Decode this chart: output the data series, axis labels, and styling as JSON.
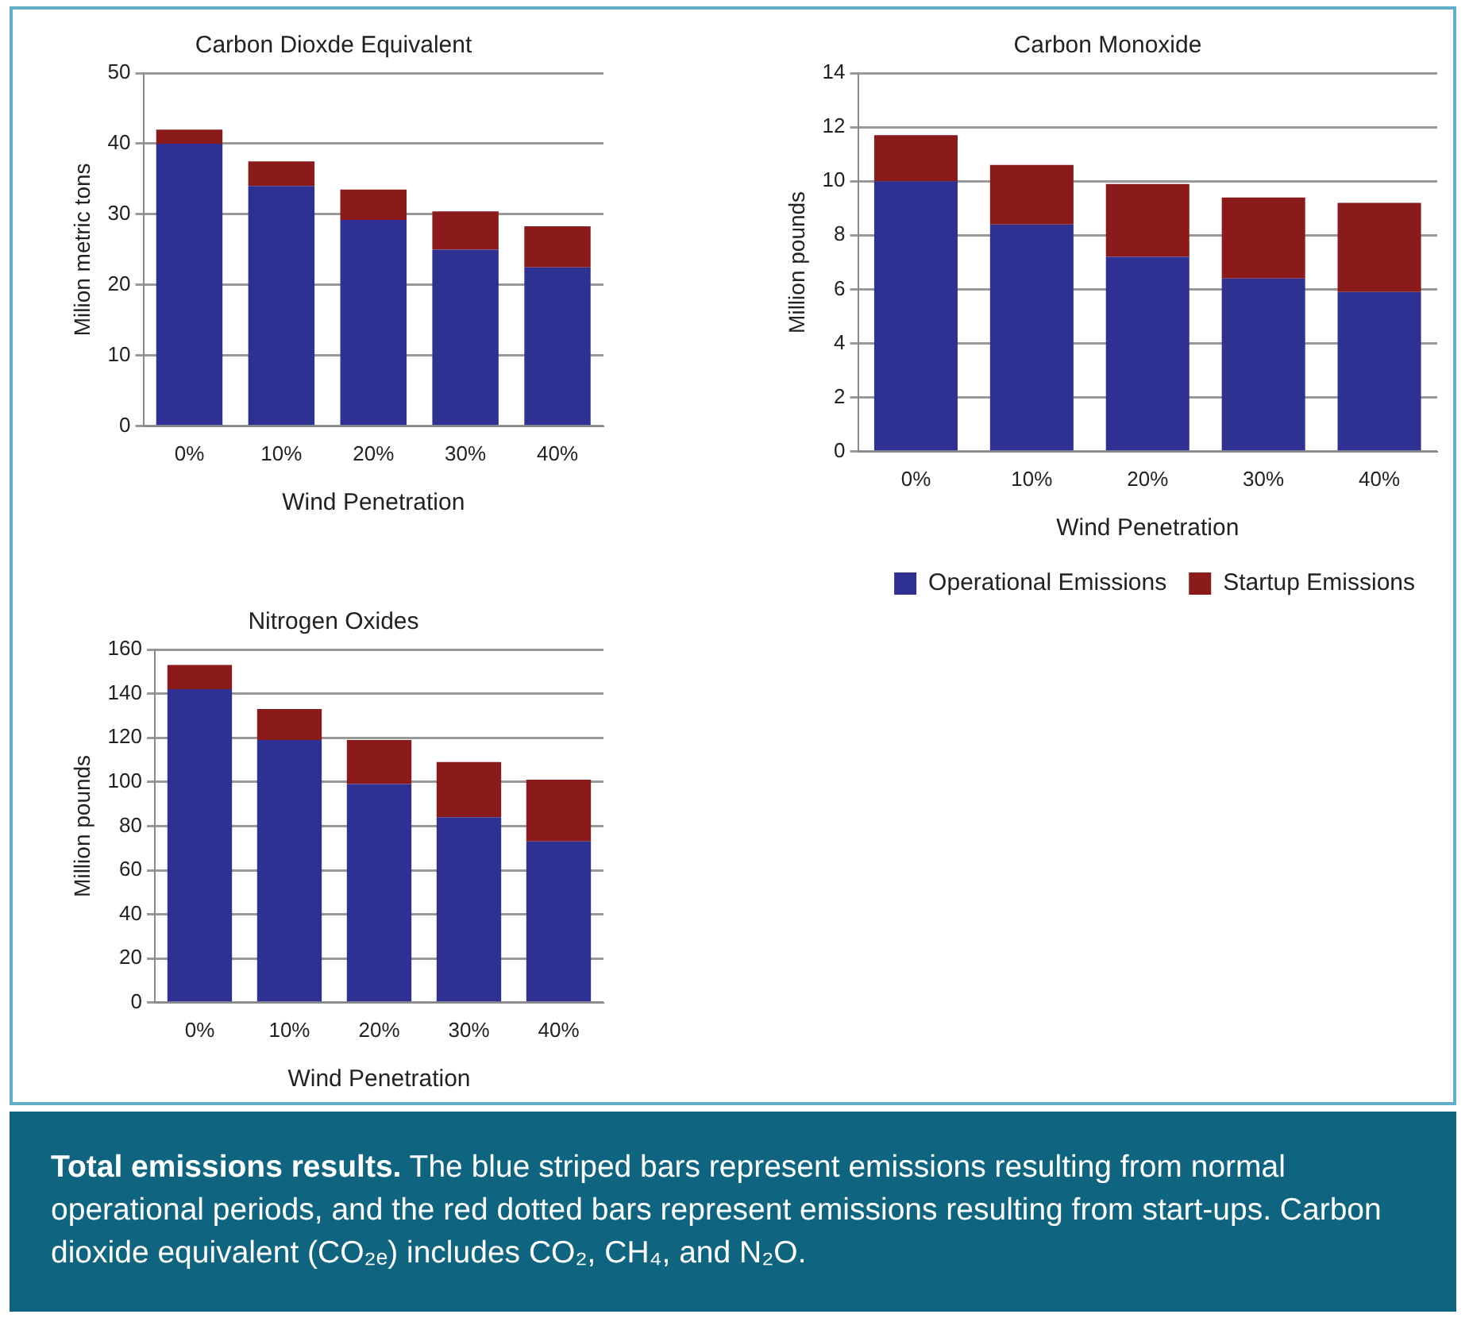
{
  "chart_data": [
    {
      "type": "bar",
      "title": "Carbon Dioxde Equivalent",
      "xlabel": "Wind Penetration",
      "ylabel": "Milion metric tons",
      "categories": [
        "0%",
        "10%",
        "20%",
        "30%",
        "40%"
      ],
      "stacked": true,
      "ylim": [
        0,
        50
      ],
      "yticks": [
        0,
        10,
        20,
        30,
        40,
        50
      ],
      "grid": "y",
      "legend": false,
      "series": [
        {
          "color": "#2e3192",
          "values": [
            40,
            34,
            29.2,
            25,
            22.5
          ]
        },
        {
          "color": "#8b1a1a",
          "values": [
            2,
            3.5,
            4.3,
            5.4,
            5.8
          ]
        }
      ]
    },
    {
      "type": "bar",
      "title": "Carbon Monoxide",
      "xlabel": "Wind Penetration",
      "ylabel": "Million pounds",
      "categories": [
        "0%",
        "10%",
        "20%",
        "30%",
        "40%"
      ],
      "stacked": true,
      "ylim": [
        0,
        14
      ],
      "yticks": [
        0,
        2,
        4,
        6,
        8,
        10,
        12,
        14
      ],
      "grid": "y",
      "legend": "bottom",
      "series": [
        {
          "name": "Operational Emissions",
          "color": "#2e3192",
          "values": [
            10,
            8.4,
            7.2,
            6.4,
            5.9
          ]
        },
        {
          "name": "Startup Emissions",
          "color": "#8b1a1a",
          "values": [
            1.7,
            2.2,
            2.7,
            3.0,
            3.3
          ]
        }
      ]
    },
    {
      "type": "bar",
      "title": "Nitrogen Oxides",
      "xlabel": "Wind Penetration",
      "ylabel": "Million pounds",
      "categories": [
        "0%",
        "10%",
        "20%",
        "30%",
        "40%"
      ],
      "stacked": true,
      "ylim": [
        0,
        160
      ],
      "yticks": [
        0,
        20,
        40,
        60,
        80,
        100,
        120,
        140,
        160
      ],
      "grid": "y",
      "legend": false,
      "annotations": [
        "Total emissions results.",
        "The blue striped bars represent emissions resulting from normal operational periods, and the red dotted bars represent emissions resulting from start-ups. Carbon dioxide equivalent (CO₂ₑ) includes CO₂, CH₄, and N₂O."
      ],
      "series": [
        {
          "color": "#2e3192",
          "values": [
            142,
            119,
            99,
            84,
            73
          ]
        },
        {
          "color": "#8b1a1a",
          "values": [
            11,
            14,
            20,
            25,
            28
          ]
        }
      ]
    }
  ]
}
